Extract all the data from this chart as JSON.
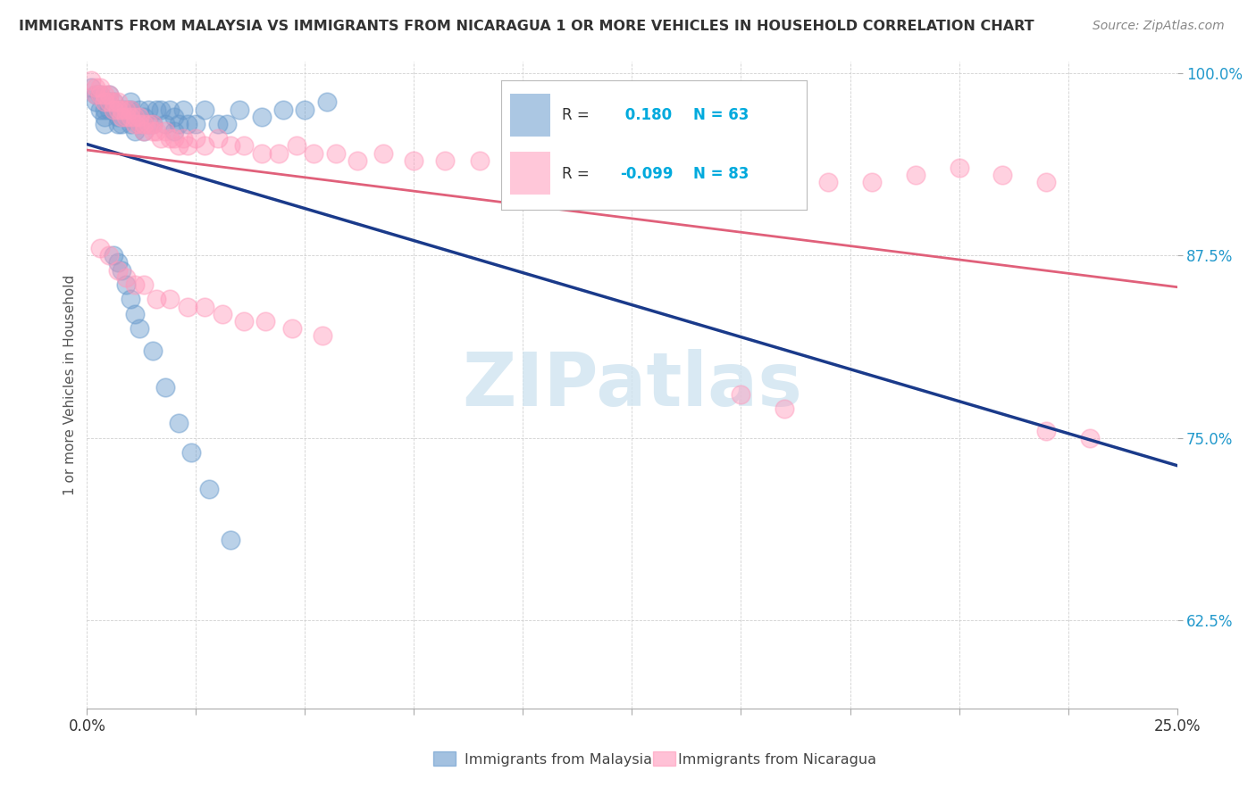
{
  "title": "IMMIGRANTS FROM MALAYSIA VS IMMIGRANTS FROM NICARAGUA 1 OR MORE VEHICLES IN HOUSEHOLD CORRELATION CHART",
  "source": "Source: ZipAtlas.com",
  "ylabel": "1 or more Vehicles in Household",
  "background_color": "#ffffff",
  "grid_color": "#cccccc",
  "malaysia_color": "#6699cc",
  "nicaragua_color": "#ff99bb",
  "malaysia_line_color": "#1a3a8a",
  "nicaragua_line_color": "#e0607a",
  "malaysia_R": 0.18,
  "malaysia_N": 63,
  "nicaragua_R": -0.099,
  "nicaragua_N": 83,
  "xmin": 0.0,
  "xmax": 0.25,
  "ymin": 0.565,
  "ymax": 1.008,
  "yticks": [
    0.625,
    0.75,
    0.875,
    1.0
  ],
  "ytick_labels": [
    "62.5%",
    "75.0%",
    "87.5%",
    "100.0%"
  ],
  "xticks": [
    0.0,
    0.025,
    0.05,
    0.075,
    0.1,
    0.125,
    0.15,
    0.175,
    0.2,
    0.225,
    0.25
  ],
  "malaysia_x": [
    0.001,
    0.002,
    0.002,
    0.003,
    0.003,
    0.004,
    0.004,
    0.004,
    0.005,
    0.005,
    0.005,
    0.006,
    0.006,
    0.007,
    0.007,
    0.007,
    0.008,
    0.008,
    0.009,
    0.009,
    0.01,
    0.01,
    0.01,
    0.011,
    0.011,
    0.012,
    0.012,
    0.013,
    0.013,
    0.014,
    0.014,
    0.015,
    0.016,
    0.017,
    0.018,
    0.019,
    0.02,
    0.02,
    0.021,
    0.022,
    0.023,
    0.025,
    0.027,
    0.03,
    0.032,
    0.035,
    0.04,
    0.045,
    0.05,
    0.055,
    0.006,
    0.007,
    0.008,
    0.009,
    0.01,
    0.011,
    0.012,
    0.015,
    0.018,
    0.021,
    0.024,
    0.028,
    0.033
  ],
  "malaysia_y": [
    0.99,
    0.985,
    0.98,
    0.985,
    0.975,
    0.975,
    0.97,
    0.965,
    0.985,
    0.98,
    0.975,
    0.98,
    0.975,
    0.975,
    0.97,
    0.965,
    0.975,
    0.965,
    0.975,
    0.97,
    0.98,
    0.975,
    0.965,
    0.97,
    0.96,
    0.975,
    0.965,
    0.97,
    0.96,
    0.975,
    0.965,
    0.965,
    0.975,
    0.975,
    0.965,
    0.975,
    0.97,
    0.96,
    0.965,
    0.975,
    0.965,
    0.965,
    0.975,
    0.965,
    0.965,
    0.975,
    0.97,
    0.975,
    0.975,
    0.98,
    0.875,
    0.87,
    0.865,
    0.855,
    0.845,
    0.835,
    0.825,
    0.81,
    0.785,
    0.76,
    0.74,
    0.715,
    0.68
  ],
  "nicaragua_x": [
    0.001,
    0.002,
    0.002,
    0.003,
    0.003,
    0.004,
    0.004,
    0.005,
    0.005,
    0.006,
    0.006,
    0.007,
    0.007,
    0.008,
    0.008,
    0.009,
    0.009,
    0.01,
    0.01,
    0.011,
    0.011,
    0.012,
    0.012,
    0.013,
    0.013,
    0.014,
    0.015,
    0.015,
    0.016,
    0.017,
    0.018,
    0.019,
    0.02,
    0.021,
    0.022,
    0.023,
    0.025,
    0.027,
    0.03,
    0.033,
    0.036,
    0.04,
    0.044,
    0.048,
    0.052,
    0.057,
    0.062,
    0.068,
    0.075,
    0.082,
    0.09,
    0.099,
    0.108,
    0.118,
    0.128,
    0.138,
    0.148,
    0.158,
    0.17,
    0.18,
    0.19,
    0.2,
    0.21,
    0.22,
    0.003,
    0.005,
    0.007,
    0.009,
    0.011,
    0.013,
    0.016,
    0.019,
    0.023,
    0.027,
    0.031,
    0.036,
    0.041,
    0.047,
    0.054,
    0.15,
    0.16,
    0.22,
    0.23
  ],
  "nicaragua_y": [
    0.995,
    0.99,
    0.985,
    0.99,
    0.985,
    0.985,
    0.98,
    0.985,
    0.98,
    0.98,
    0.975,
    0.98,
    0.975,
    0.975,
    0.97,
    0.975,
    0.97,
    0.975,
    0.97,
    0.97,
    0.965,
    0.97,
    0.965,
    0.965,
    0.96,
    0.965,
    0.965,
    0.96,
    0.96,
    0.955,
    0.96,
    0.955,
    0.955,
    0.95,
    0.955,
    0.95,
    0.955,
    0.95,
    0.955,
    0.95,
    0.95,
    0.945,
    0.945,
    0.95,
    0.945,
    0.945,
    0.94,
    0.945,
    0.94,
    0.94,
    0.94,
    0.935,
    0.935,
    0.935,
    0.935,
    0.93,
    0.93,
    0.93,
    0.925,
    0.925,
    0.93,
    0.935,
    0.93,
    0.925,
    0.88,
    0.875,
    0.865,
    0.86,
    0.855,
    0.855,
    0.845,
    0.845,
    0.84,
    0.84,
    0.835,
    0.83,
    0.83,
    0.825,
    0.82,
    0.78,
    0.77,
    0.755,
    0.75
  ],
  "legend_R_label_color": "#555555",
  "legend_value_color": "#00aadd",
  "watermark_color": "#d0e4f0",
  "title_fontsize": 11.5,
  "source_fontsize": 10,
  "tick_fontsize": 12
}
